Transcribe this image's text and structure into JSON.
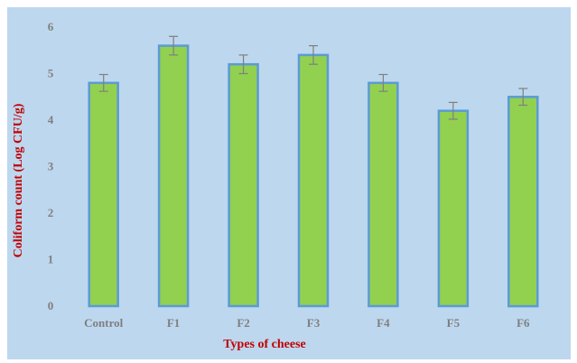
{
  "chart_data": {
    "type": "bar",
    "categories": [
      "Control",
      "F1",
      "F2",
      "F3",
      "F4",
      "F5",
      "F6"
    ],
    "values": [
      4.8,
      5.6,
      5.2,
      5.4,
      4.8,
      4.2,
      4.5
    ],
    "error": [
      0.18,
      0.2,
      0.2,
      0.2,
      0.18,
      0.18,
      0.18
    ],
    "xlabel": "Types of cheese",
    "ylabel": "Coliform count (Log CFU/g)",
    "ylim": [
      0,
      6
    ],
    "yticks": [
      0,
      1,
      2,
      3,
      4,
      5,
      6
    ],
    "grid": false,
    "legend": "none",
    "colors": {
      "background": "#bdd7ee",
      "bar_fill": "#92d050",
      "bar_stroke": "#5b9bd5",
      "error_bar": "#7f7f7f",
      "axis_title": "#c00000",
      "tick_label": "#7f7f7f"
    }
  }
}
